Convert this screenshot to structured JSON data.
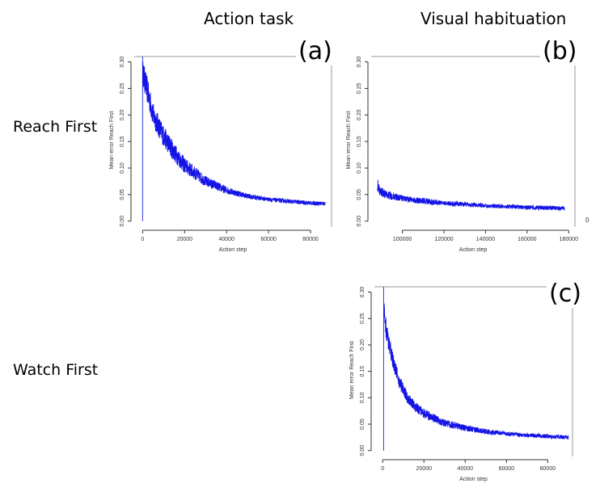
{
  "column_titles": {
    "action": "Action task",
    "visual": "Visual habituation"
  },
  "row_titles": {
    "reach": "Reach First",
    "watch": "Watch First"
  },
  "stray_label": "0",
  "chart_data": [
    {
      "id": "a",
      "panel_label": "(a)",
      "type": "line",
      "xlabel": "Action step",
      "ylabel": "Mean error Reach First",
      "xlim": [
        -4000,
        90000
      ],
      "ylim": [
        -0.005,
        0.31
      ],
      "xticks": [
        0,
        20000,
        40000,
        60000,
        80000
      ],
      "yticks": [
        0.0,
        0.05,
        0.1,
        0.15,
        0.2,
        0.25,
        0.3
      ],
      "ytick_labels": [
        "0.00",
        "0.05",
        "0.10",
        "0.15",
        "0.20",
        "0.25",
        "0.30"
      ],
      "start_spike": {
        "x": 0,
        "y_from": 0.0,
        "y_to": 0.31
      },
      "x": [
        0,
        2000,
        5000,
        10000,
        15000,
        20000,
        30000,
        40000,
        50000,
        60000,
        70000,
        80000,
        87000
      ],
      "y": [
        0.28,
        0.25,
        0.2,
        0.16,
        0.13,
        0.105,
        0.075,
        0.058,
        0.047,
        0.041,
        0.037,
        0.034,
        0.033
      ],
      "noise": [
        0.025,
        0.025,
        0.022,
        0.02,
        0.018,
        0.015,
        0.01,
        0.007,
        0.005,
        0.004,
        0.004,
        0.004,
        0.004
      ],
      "color": "#1414e6"
    },
    {
      "id": "b",
      "panel_label": "(b)",
      "type": "line",
      "xlabel": "Action step",
      "ylabel": "Mean error Reach First",
      "xlim": [
        85000,
        183000
      ],
      "ylim": [
        -0.005,
        0.31
      ],
      "xticks": [
        100000,
        120000,
        140000,
        160000,
        180000
      ],
      "yticks": [
        0.0,
        0.05,
        0.1,
        0.15,
        0.2,
        0.25,
        0.3
      ],
      "ytick_labels": [
        "0.00",
        "0.05",
        "0.10",
        "0.15",
        "0.20",
        "0.25",
        "0.30"
      ],
      "x": [
        88000,
        89000,
        92000,
        100000,
        110000,
        120000,
        140000,
        160000,
        178000
      ],
      "y": [
        0.07,
        0.058,
        0.05,
        0.043,
        0.038,
        0.034,
        0.029,
        0.026,
        0.024
      ],
      "noise": [
        0.012,
        0.009,
        0.008,
        0.006,
        0.006,
        0.005,
        0.004,
        0.004,
        0.004
      ],
      "color": "#1414e6"
    },
    {
      "id": "c",
      "panel_label": "(c)",
      "type": "line",
      "xlabel": "Action step",
      "ylabel": "Mean error Reach First",
      "xlim": [
        -4000,
        92000
      ],
      "ylim": [
        -0.005,
        0.31
      ],
      "xticks": [
        0,
        20000,
        40000,
        60000,
        80000
      ],
      "yticks": [
        0.0,
        0.05,
        0.1,
        0.15,
        0.2,
        0.25,
        0.3
      ],
      "ytick_labels": [
        "0.00",
        "0.05",
        "0.10",
        "0.15",
        "0.20",
        "0.25",
        "0.30"
      ],
      "start_spike": {
        "x": 500,
        "y_from": 0.0,
        "y_to": 0.31
      },
      "x": [
        500,
        2000,
        5000,
        8000,
        12000,
        16000,
        20000,
        30000,
        40000,
        50000,
        60000,
        70000,
        80000,
        90000
      ],
      "y": [
        0.27,
        0.22,
        0.17,
        0.13,
        0.1,
        0.082,
        0.07,
        0.052,
        0.043,
        0.036,
        0.032,
        0.029,
        0.027,
        0.025
      ],
      "noise": [
        0.02,
        0.018,
        0.015,
        0.013,
        0.011,
        0.01,
        0.009,
        0.007,
        0.006,
        0.005,
        0.004,
        0.004,
        0.004,
        0.004
      ],
      "color": "#1414e6"
    }
  ]
}
